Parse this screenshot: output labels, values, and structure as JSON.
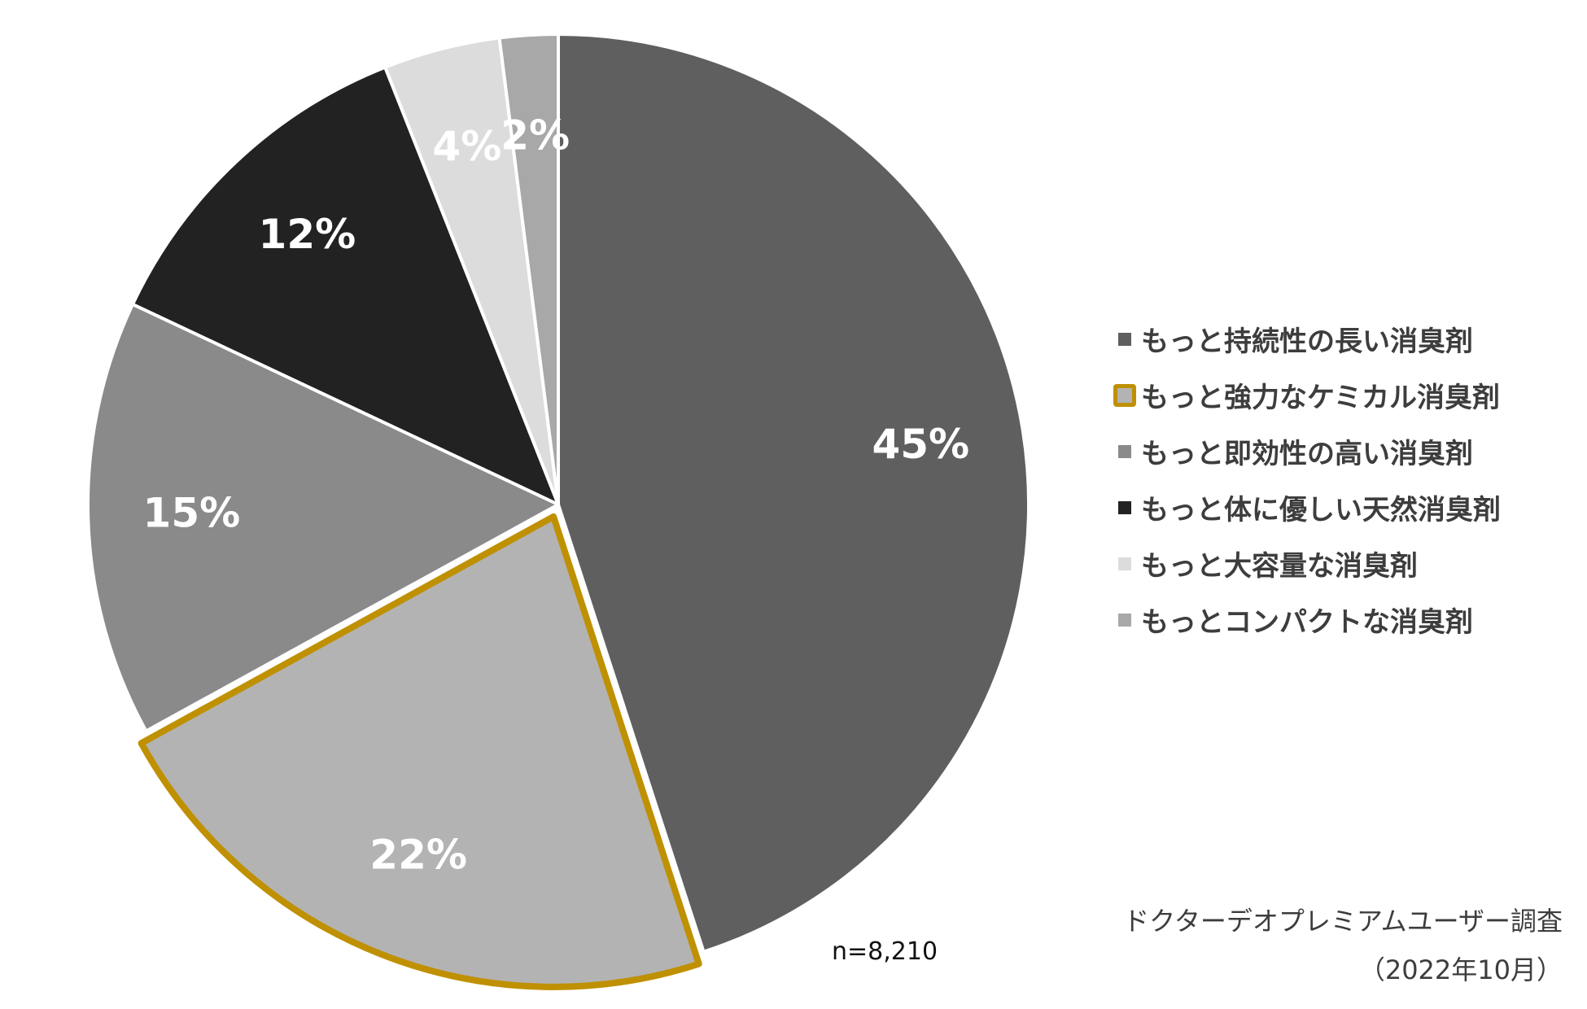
{
  "chart_data": {
    "type": "pie",
    "title": "",
    "categories": [
      "もっと持続性の長い消臭剤",
      "もっと強力なケミカル消臭剤",
      "もっと即効性の高い消臭剤",
      "もっと体に優しい天然消臭剤",
      "もっと大容量な消臭剤",
      "もっとコンパクトな消臭剤"
    ],
    "values": [
      45,
      22,
      15,
      12,
      4,
      2
    ],
    "value_labels": [
      "45%",
      "22%",
      "15%",
      "12%",
      "4%",
      "2%"
    ],
    "colors": [
      "#5f5f5f",
      "#b3b3b3",
      "#8a8a8a",
      "#222222",
      "#dcdcdc",
      "#a8a8a8"
    ],
    "highlighted_index": 1,
    "highlight_color": "#bf9000",
    "start_angle": "12 o'clock",
    "direction": "clockwise",
    "legend": "right",
    "sample_size": "n=8,210"
  },
  "source": {
    "line1": "ドクターデオプレミアムユーザー調査",
    "line2": "（2022年10月）"
  }
}
